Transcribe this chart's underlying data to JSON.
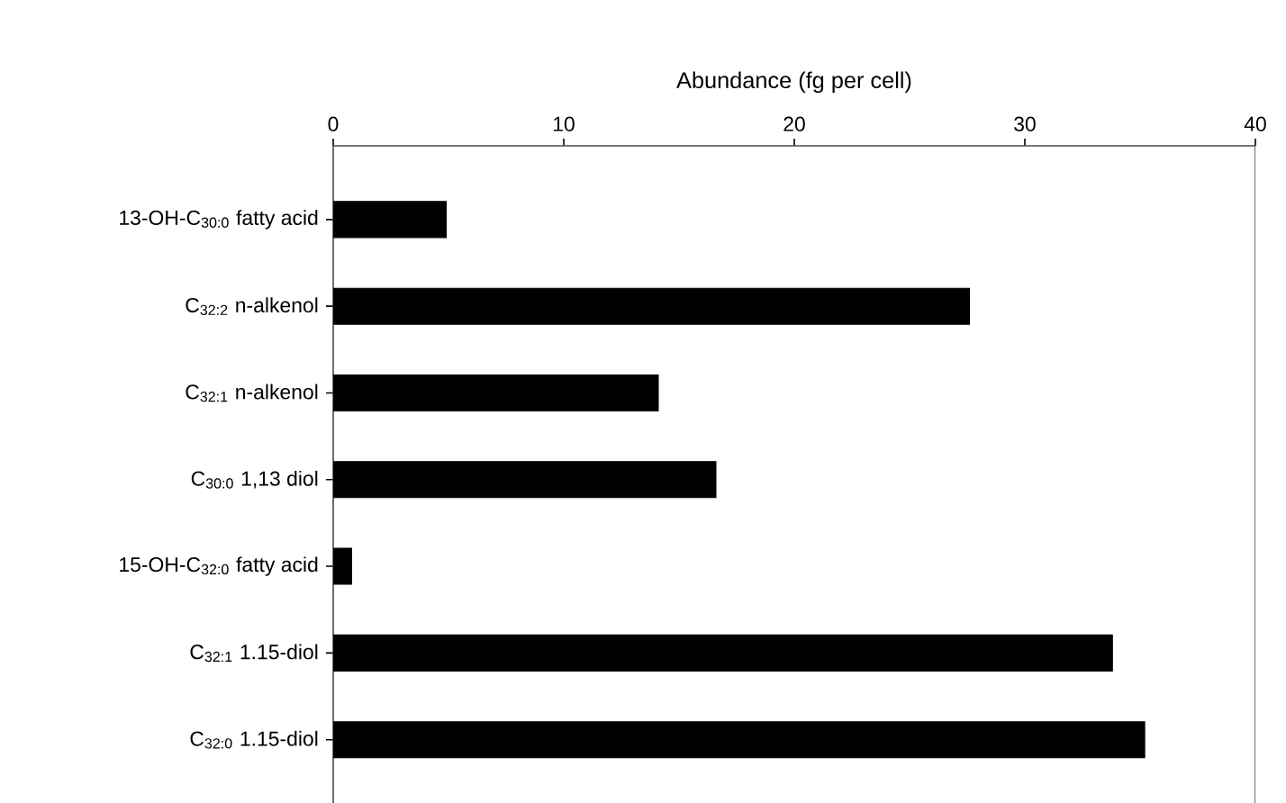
{
  "chart_data": {
    "type": "bar",
    "orientation": "horizontal",
    "xlabel": "Abundance (fg per cell)",
    "categories": [
      "13-OH-C$_{30:0}$ fatty acid",
      "C$_{32:2}$ n-alkenol",
      "C$_{32:1}$ n-alkenol",
      "C$_{30:0}$ 1,13 diol",
      "15-OH-C$_{32:0}$ fatty acid",
      "C$_{32:1}$ 1.15-diol",
      "C$_{32:0}$ 1.15-diol"
    ],
    "values": [
      4.9,
      27.6,
      14.1,
      16.6,
      0.8,
      33.8,
      35.2
    ],
    "color": "#000000",
    "xlim": [
      0,
      40
    ],
    "xticks": [
      0,
      10,
      20,
      30,
      40
    ]
  }
}
